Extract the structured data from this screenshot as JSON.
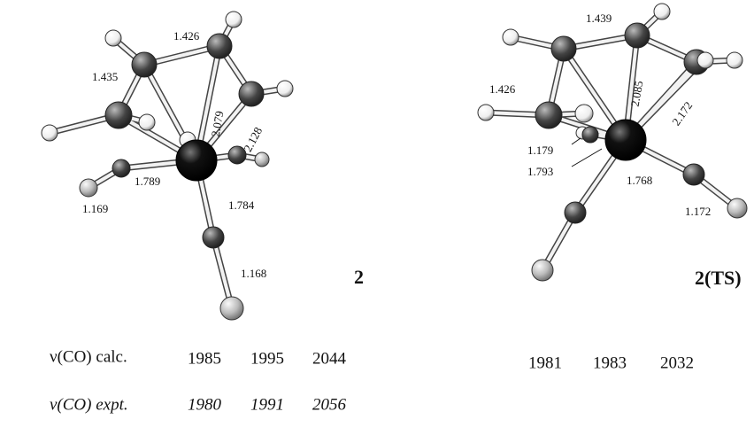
{
  "structures": [
    {
      "label": "2",
      "bond_lengths": [
        "1.426",
        "1.435",
        "2.079",
        "2.128",
        "1.789",
        "1.169",
        "1.784",
        "1.168"
      ]
    },
    {
      "label": "2(TS)",
      "bond_lengths": [
        "1.439",
        "1.426",
        "2.085",
        "2.172",
        "1.179",
        "1.793",
        "1.768",
        "1.172"
      ]
    }
  ],
  "table": {
    "rows": [
      {
        "label": "ν(CO) calc.",
        "structure_1": [
          "1985",
          "1995",
          "2044"
        ],
        "structure_2": [
          "1981",
          "1983",
          "2032"
        ]
      },
      {
        "label": "ν(CO) expt.",
        "structure_1": [
          "1980",
          "1991",
          "2056"
        ]
      }
    ]
  }
}
